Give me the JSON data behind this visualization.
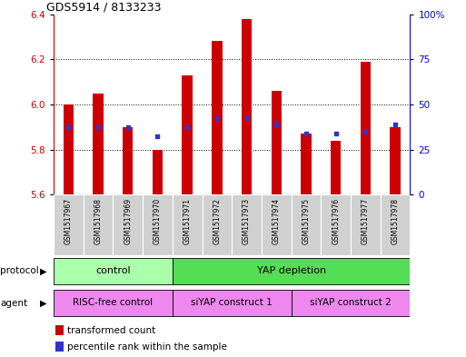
{
  "title": "GDS5914 / 8133233",
  "samples": [
    "GSM1517967",
    "GSM1517968",
    "GSM1517969",
    "GSM1517970",
    "GSM1517971",
    "GSM1517972",
    "GSM1517973",
    "GSM1517974",
    "GSM1517975",
    "GSM1517976",
    "GSM1517977",
    "GSM1517978"
  ],
  "bar_values": [
    6.0,
    6.05,
    5.9,
    5.8,
    6.13,
    6.28,
    6.38,
    6.06,
    5.87,
    5.84,
    6.19,
    5.9
  ],
  "blue_values": [
    5.9,
    5.9,
    5.9,
    5.86,
    5.9,
    5.94,
    5.94,
    5.91,
    5.87,
    5.87,
    5.88,
    5.91
  ],
  "ylim": [
    5.6,
    6.4
  ],
  "yticks": [
    5.6,
    5.8,
    6.0,
    6.2,
    6.4
  ],
  "right_yticks": [
    0,
    25,
    50,
    75,
    100
  ],
  "right_yticklabels": [
    "0",
    "25",
    "50",
    "75",
    "100%"
  ],
  "bar_color": "#cc0000",
  "blue_color": "#3333cc",
  "bar_bottom": 5.6,
  "bar_width": 0.35,
  "protocol_groups": [
    {
      "label": "control",
      "start": 0,
      "end": 3,
      "color": "#aaffaa"
    },
    {
      "label": "YAP depletion",
      "start": 4,
      "end": 11,
      "color": "#55dd55"
    }
  ],
  "agent_groups": [
    {
      "label": "RISC-free control",
      "start": 0,
      "end": 3,
      "color": "#ee88ee"
    },
    {
      "label": "siYAP construct 1",
      "start": 4,
      "end": 7,
      "color": "#ee88ee"
    },
    {
      "label": "siYAP construct 2",
      "start": 8,
      "end": 11,
      "color": "#ee88ee"
    }
  ],
  "protocol_label": "protocol",
  "agent_label": "agent",
  "legend_red": "transformed count",
  "legend_blue": "percentile rank within the sample",
  "plot_area_color": "white",
  "label_area_color": "#d0d0d0"
}
